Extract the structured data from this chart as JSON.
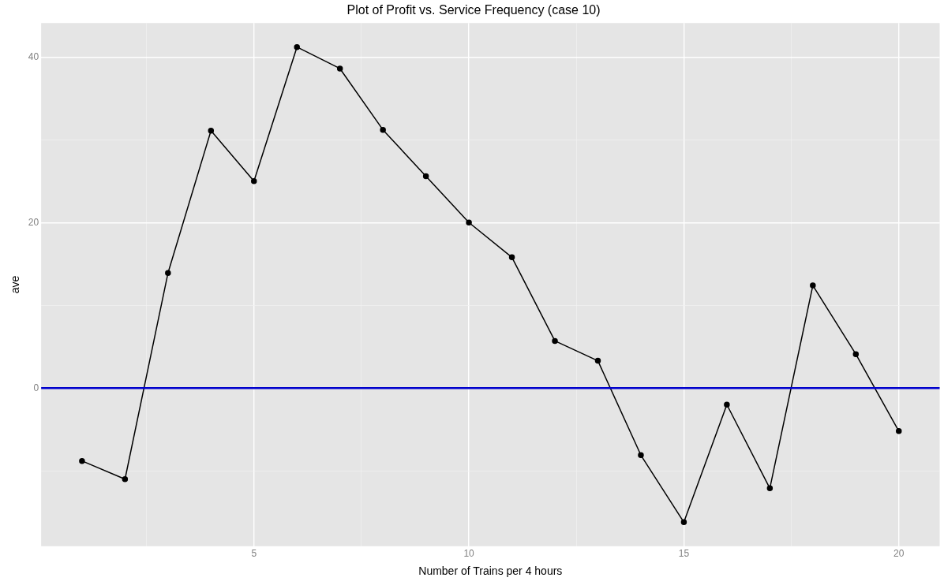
{
  "chart_data": {
    "type": "line",
    "title": "Plot of Profit vs. Service Frequency (case 10)",
    "xlabel": "Number of Trains per 4 hours",
    "ylabel": "ave",
    "x": [
      1,
      2,
      3,
      4,
      5,
      6,
      7,
      8,
      9,
      10,
      11,
      12,
      13,
      14,
      15,
      16,
      17,
      18,
      19,
      20
    ],
    "series": [
      {
        "color": "#000000",
        "values": [
          -8.8,
          -11.0,
          13.9,
          31.1,
          25.0,
          41.2,
          38.6,
          31.2,
          25.6,
          20.0,
          15.8,
          5.7,
          3.3,
          -8.1,
          -16.2,
          -2.0,
          -12.1,
          12.4,
          4.1,
          -5.2
        ]
      }
    ],
    "xlim": [
      0.05,
      20.95
    ],
    "ylim": [
      -19.1,
      44.1
    ],
    "xticks": [
      {
        "value": 2.5,
        "label": null
      },
      5,
      {
        "value": 7.5,
        "label": null
      },
      10,
      {
        "value": 12.5,
        "label": null
      },
      15,
      {
        "value": 17.5,
        "label": null
      },
      20
    ],
    "yticks": [
      {
        "value": -10,
        "label": null
      },
      0,
      {
        "value": 10,
        "label": null
      },
      20,
      {
        "value": 30,
        "label": null
      },
      40
    ],
    "ref_lines": [
      {
        "axis": "y",
        "value": 0,
        "color": "#0000cc",
        "line_style": "solid"
      }
    ],
    "grid": true,
    "legend": false,
    "marker": "circle",
    "line_style": "solid"
  }
}
